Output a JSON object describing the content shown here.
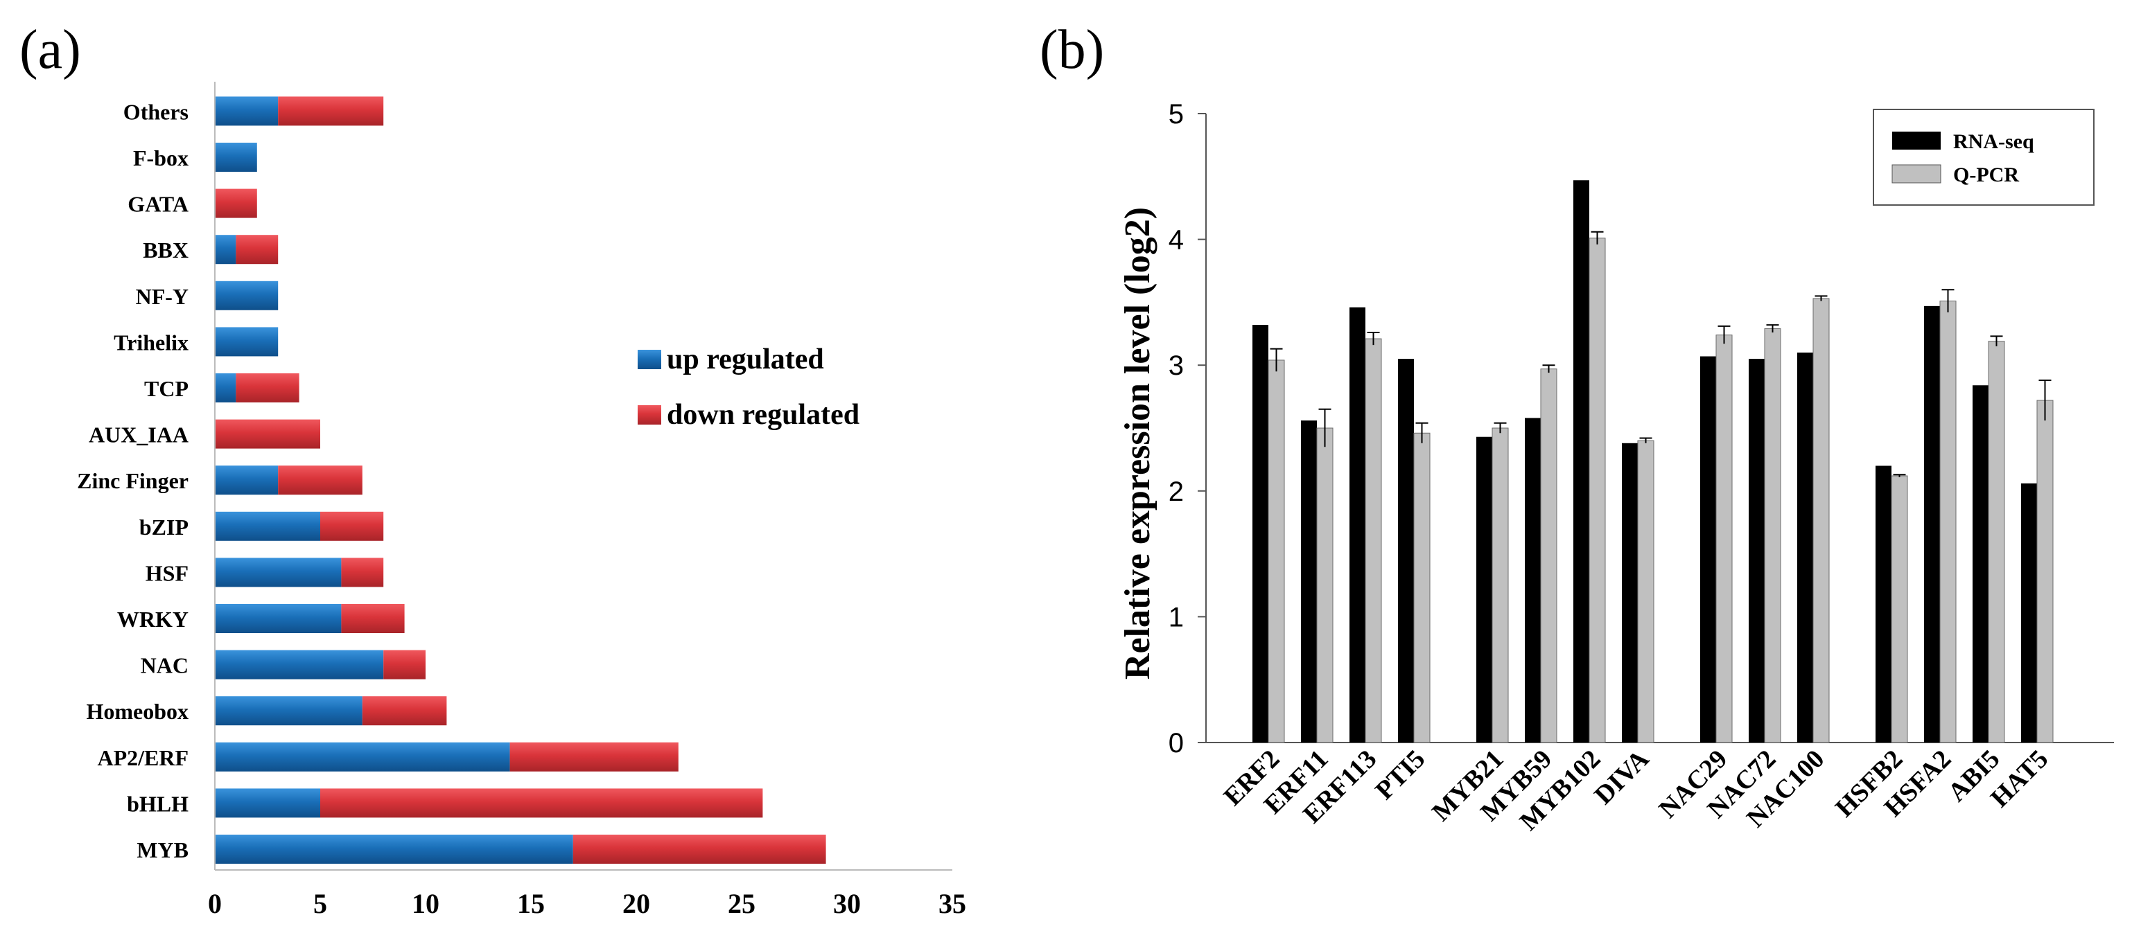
{
  "panels": {
    "a_label": "(a)",
    "b_label": "(b)"
  },
  "colors": {
    "up": "#1a6fb8",
    "down": "#d9343a",
    "rna_seq": "#000000",
    "qpcr": "#c0c0c0"
  },
  "chart_data": [
    {
      "type": "bar",
      "orientation": "horizontal",
      "stacked": true,
      "categories": [
        "MYB",
        "bHLH",
        "AP2/ERF",
        "Homeobox",
        "NAC",
        "WRKY",
        "HSF",
        "bZIP",
        "Zinc Finger",
        "AUX_IAA",
        "TCP",
        "Trihelix",
        "NF-Y",
        "BBX",
        "GATA",
        "F-box",
        "Others"
      ],
      "series": [
        {
          "name": "up regulated",
          "values": [
            17,
            5,
            14,
            7,
            8,
            6,
            6,
            5,
            3,
            0,
            1,
            3,
            3,
            1,
            0,
            2,
            3
          ]
        },
        {
          "name": "down regulated",
          "values": [
            12,
            21,
            8,
            4,
            2,
            3,
            2,
            3,
            4,
            5,
            3,
            0,
            0,
            2,
            2,
            0,
            5
          ]
        }
      ],
      "xlim": [
        0,
        35
      ],
      "xticks": [
        "0",
        "5",
        "10",
        "15",
        "20",
        "25",
        "30",
        "35"
      ],
      "legend": {
        "position": "right",
        "entries": [
          "up regulated",
          "down regulated"
        ]
      },
      "title": "",
      "xlabel": "",
      "ylabel": ""
    },
    {
      "type": "bar",
      "orientation": "vertical",
      "grouped": true,
      "categories": [
        "ERF2",
        "ERF11",
        "ERF113",
        "PTI5",
        "MYB21",
        "MYB59",
        "MYB102",
        "DIVA",
        "NAC29",
        "NAC72",
        "NAC100",
        "HSFB2",
        "HSFA2",
        "ABI5",
        "HAT5"
      ],
      "groups": [
        [
          0,
          1,
          2,
          3
        ],
        [
          4,
          5,
          6,
          7
        ],
        [
          8,
          9,
          10
        ],
        [
          11,
          12,
          13,
          14
        ]
      ],
      "series": [
        {
          "name": "RNA-seq",
          "values": [
            3.32,
            2.56,
            3.46,
            3.05,
            2.43,
            2.58,
            4.47,
            2.38,
            3.07,
            3.05,
            3.1,
            2.2,
            3.47,
            2.84,
            2.06
          ]
        },
        {
          "name": "Q-PCR",
          "values": [
            3.04,
            2.5,
            3.21,
            2.46,
            2.5,
            2.97,
            4.01,
            2.4,
            3.24,
            3.29,
            3.53,
            2.12,
            3.51,
            3.19,
            2.72
          ],
          "errors": [
            0.09,
            0.15,
            0.05,
            0.08,
            0.04,
            0.03,
            0.05,
            0.02,
            0.07,
            0.03,
            0.02,
            0.01,
            0.09,
            0.04,
            0.16
          ]
        }
      ],
      "ylim": [
        0,
        5
      ],
      "yticks": [
        "0",
        "1",
        "2",
        "3",
        "4",
        "5"
      ],
      "ylabel": "Relative expression level (log2)",
      "xlabel": "",
      "title": "",
      "legend": {
        "position": "top-right",
        "entries": [
          "RNA-seq",
          "Q-PCR"
        ]
      }
    }
  ]
}
